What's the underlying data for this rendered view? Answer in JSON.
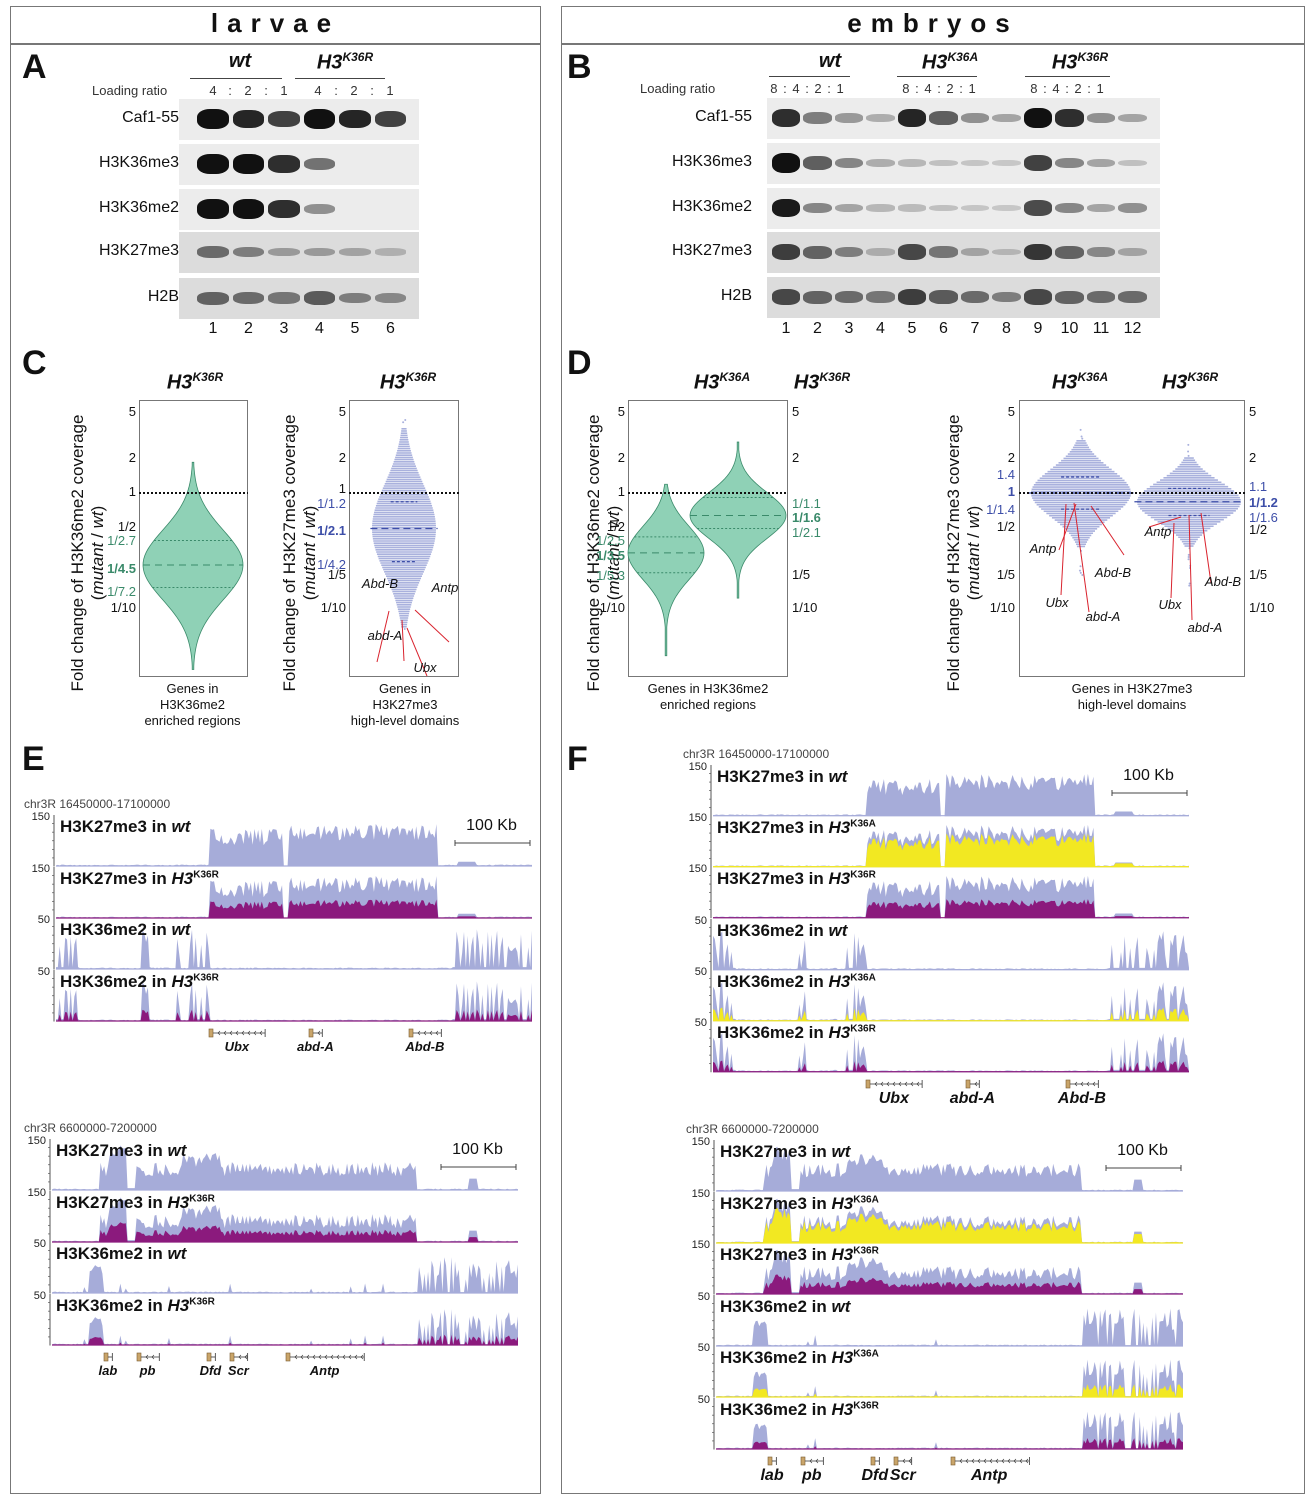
{
  "sections": {
    "left_header": "larvae",
    "right_header": "embryos"
  },
  "panels": {
    "A": {
      "label": "A",
      "groups": [
        {
          "name": "wt",
          "sup": ""
        },
        {
          "name": "H3",
          "sup": "K36R"
        }
      ],
      "loading_ratio_label": "Loading ratio",
      "ratios": [
        "4",
        ":",
        "2",
        ":",
        "1",
        "4",
        ":",
        "2",
        ":",
        "1"
      ],
      "rows": [
        "Caf1-55",
        "H3K36me3",
        "H3K36me2",
        "H3K27me3",
        "H2B"
      ],
      "lanes": [
        "1",
        "2",
        "3",
        "4",
        "5",
        "6"
      ],
      "band_intensity": {
        "Caf1-55": [
          1.0,
          0.85,
          0.7,
          1.0,
          0.85,
          0.7
        ],
        "H3K36me3": [
          1.0,
          0.95,
          0.8,
          0.45,
          0,
          0
        ],
        "H3K36me2": [
          1.0,
          0.95,
          0.8,
          0.3,
          0,
          0
        ],
        "H3K27me3": [
          0.45,
          0.35,
          0.2,
          0.2,
          0.15,
          0.08
        ],
        "H2B": [
          0.5,
          0.45,
          0.4,
          0.55,
          0.35,
          0.3
        ]
      }
    },
    "B": {
      "label": "B",
      "groups": [
        {
          "name": "wt",
          "sup": ""
        },
        {
          "name": "H3",
          "sup": "K36A"
        },
        {
          "name": "H3",
          "sup": "K36R"
        }
      ],
      "loading_ratio_label": "Loading ratio",
      "ratios": [
        "8 : 4 : 2 : 1",
        "8 : 4 : 2 : 1",
        "8 : 4 : 2 : 1"
      ],
      "rows": [
        "Caf1-55",
        "H3K36me3",
        "H3K36me2",
        "H3K27me3",
        "H2B"
      ],
      "lanes": [
        "1",
        "2",
        "3",
        "4",
        "5",
        "6",
        "7",
        "8",
        "9",
        "10",
        "11",
        "12"
      ],
      "band_intensity": {
        "Caf1-55": [
          0.8,
          0.4,
          0.25,
          0.15,
          0.85,
          0.55,
          0.3,
          0.2,
          1.0,
          0.8,
          0.3,
          0.2
        ],
        "H3K36me3": [
          0.95,
          0.55,
          0.35,
          0.15,
          0.1,
          0.05,
          0.03,
          0.02,
          0.7,
          0.35,
          0.2,
          0.05
        ],
        "H3K36me2": [
          0.9,
          0.35,
          0.2,
          0.1,
          0.08,
          0.05,
          0.03,
          0.02,
          0.65,
          0.35,
          0.2,
          0.3
        ],
        "H3K27me3": [
          0.7,
          0.5,
          0.35,
          0.1,
          0.65,
          0.4,
          0.15,
          0.05,
          0.75,
          0.5,
          0.3,
          0.15
        ],
        "H2B": [
          0.65,
          0.5,
          0.45,
          0.4,
          0.7,
          0.55,
          0.45,
          0.35,
          0.65,
          0.5,
          0.45,
          0.45
        ]
      }
    },
    "C": {
      "label": "C",
      "left": {
        "title": "H3",
        "title_sup": "K36R",
        "ylabel": "Fold change of H3K36me2 coverage",
        "ylabel2_pre": "(",
        "ylabel2_it1": "mutant",
        "ylabel2_mid": " / ",
        "ylabel2_it2": "wt",
        "ylabel2_post": ")",
        "xcaption": [
          "Genes in",
          "H3K36me2",
          "enriched regions"
        ],
        "ticks": [
          "5",
          "2",
          "1",
          "1/2",
          "1/10"
        ],
        "stat_labels": [
          {
            "text": "1/2.7",
            "bold": false
          },
          {
            "text": "1/4.5",
            "bold": true
          },
          {
            "text": "1/7.2",
            "bold": false
          }
        ]
      },
      "right": {
        "title": "H3",
        "title_sup": "K36R",
        "ylabel": "Fold change of H3K27me3 coverage",
        "ylabel2_pre": "(",
        "ylabel2_it1": "mutant",
        "ylabel2_mid": " / ",
        "ylabel2_it2": "wt",
        "ylabel2_post": ")",
        "xcaption": [
          "Genes in",
          "H3K27me3",
          "high-level domains"
        ],
        "ticks": [
          "5",
          "2",
          "1",
          "1/5",
          "1/10"
        ],
        "stat_labels": [
          {
            "text": "1/1.2",
            "bold": false
          },
          {
            "text": "1/2.1",
            "bold": true
          },
          {
            "text": "1/4.2",
            "bold": false
          }
        ],
        "genes": [
          "Abd-B",
          "Antp",
          "abd-A",
          "Ubx"
        ]
      }
    },
    "D": {
      "label": "D",
      "left": {
        "titles": [
          {
            "t": "H3",
            "s": "K36A"
          },
          {
            "t": "H3",
            "s": "K36R"
          }
        ],
        "ylabel": "Fold change of H3K36me2 coverage",
        "xcaption": [
          "Genes in H3K36me2",
          "enriched regions"
        ],
        "ticks_left": [
          "5",
          "2",
          "1",
          "1/2",
          "1/10"
        ],
        "ticks_right": [
          "5",
          "2",
          "1/5",
          "1/10"
        ],
        "stats_left": [
          {
            "text": "1/2.5",
            "bold": false
          },
          {
            "text": "1/3.5",
            "bold": true
          },
          {
            "text": "1/5.3",
            "bold": false
          }
        ],
        "stats_right": [
          {
            "text": "1/1.1",
            "bold": false
          },
          {
            "text": "1/1.6",
            "bold": true
          },
          {
            "text": "1/2.1",
            "bold": false
          }
        ]
      },
      "right": {
        "titles": [
          {
            "t": "H3",
            "s": "K36A"
          },
          {
            "t": "H3",
            "s": "K36R"
          }
        ],
        "ylabel": "Fold change of H3K27me3 coverage",
        "xcaption": [
          "Genes in H3K27me3",
          "high-level domains"
        ],
        "ticks_left": [
          "5",
          "2",
          "1/2",
          "1/5",
          "1/10"
        ],
        "ticks_right": [
          "5",
          "2",
          "1/2",
          "1/5",
          "1/10"
        ],
        "stats_left": [
          {
            "text": "1.4",
            "bold": false
          },
          {
            "text": "1",
            "bold": true
          },
          {
            "text": "1/1.4",
            "bold": false
          }
        ],
        "stats_right": [
          {
            "text": "1.1",
            "bold": false
          },
          {
            "text": "1/1.2",
            "bold": true
          },
          {
            "text": "1/1.6",
            "bold": false
          }
        ],
        "genes_a": [
          "Antp",
          "Ubx",
          "abd-A",
          "Abd-B"
        ],
        "genes_r": [
          "Antp",
          "Ubx",
          "abd-A",
          "Abd-B"
        ]
      }
    },
    "E": {
      "label": "E",
      "blocks": [
        {
          "region": "chr3R 16450000-17100000",
          "scale_bar": "100 Kb",
          "tracks": [
            {
              "name": "H3K27me3 in ",
              "geno": "wt",
              "sup": "",
              "scale": "150",
              "overlay": ""
            },
            {
              "name": "H3K27me3 in ",
              "geno": "H3",
              "sup": "K36R",
              "scale": "150",
              "overlay": "purple"
            },
            {
              "name": "H3K36me2 in ",
              "geno": "wt",
              "sup": "",
              "scale": "50",
              "overlay": ""
            },
            {
              "name": "H3K36me2 in ",
              "geno": "H3",
              "sup": "K36R",
              "scale": "50",
              "overlay": "purple"
            }
          ],
          "genes": [
            "Ubx",
            "abd-A",
            "Abd-B"
          ]
        },
        {
          "region": "chr3R 6600000-7200000",
          "scale_bar": "100 Kb",
          "tracks": [
            {
              "name": "H3K27me3 in ",
              "geno": "wt",
              "sup": "",
              "scale": "150",
              "overlay": ""
            },
            {
              "name": "H3K27me3 in ",
              "geno": "H3",
              "sup": "K36R",
              "scale": "150",
              "overlay": "purple"
            },
            {
              "name": "H3K36me2 in ",
              "geno": "wt",
              "sup": "",
              "scale": "50",
              "overlay": ""
            },
            {
              "name": "H3K36me2 in ",
              "geno": "H3",
              "sup": "K36R",
              "scale": "50",
              "overlay": "purple"
            }
          ],
          "genes": [
            "lab",
            "pb",
            "Dfd",
            "Scr",
            "Antp"
          ]
        }
      ]
    },
    "F": {
      "label": "F",
      "blocks": [
        {
          "region": "chr3R 16450000-17100000",
          "scale_bar": "100 Kb",
          "tracks": [
            {
              "name": "H3K27me3 in ",
              "geno": "wt",
              "sup": "",
              "scale": "150",
              "overlay": ""
            },
            {
              "name": "H3K27me3 in ",
              "geno": "H3",
              "sup": "K36A",
              "scale": "150",
              "overlay": "yellow"
            },
            {
              "name": "H3K27me3 in ",
              "geno": "H3",
              "sup": "K36R",
              "scale": "150",
              "overlay": "purple"
            },
            {
              "name": "H3K36me2 in ",
              "geno": "wt",
              "sup": "",
              "scale": "50",
              "overlay": ""
            },
            {
              "name": "H3K36me2 in ",
              "geno": "H3",
              "sup": "K36A",
              "scale": "50",
              "overlay": "yellow"
            },
            {
              "name": "H3K36me2 in ",
              "geno": "H3",
              "sup": "K36R",
              "scale": "50",
              "overlay": "purple"
            }
          ],
          "genes": [
            "Ubx",
            "abd-A",
            "Abd-B"
          ]
        },
        {
          "region": "chr3R 6600000-7200000",
          "scale_bar": "100 Kb",
          "tracks": [
            {
              "name": "H3K27me3 in ",
              "geno": "wt",
              "sup": "",
              "scale": "150",
              "overlay": ""
            },
            {
              "name": "H3K27me3 in ",
              "geno": "H3",
              "sup": "K36A",
              "scale": "150",
              "overlay": "yellow"
            },
            {
              "name": "H3K27me3 in ",
              "geno": "H3",
              "sup": "K36R",
              "scale": "150",
              "overlay": "purple"
            },
            {
              "name": "H3K36me2 in ",
              "geno": "wt",
              "sup": "",
              "scale": "50",
              "overlay": ""
            },
            {
              "name": "H3K36me2 in ",
              "geno": "H3",
              "sup": "K36A",
              "scale": "50",
              "overlay": "yellow"
            },
            {
              "name": "H3K36me2 in ",
              "geno": "H3",
              "sup": "K36R",
              "scale": "50",
              "overlay": "purple"
            }
          ],
          "genes": [
            "lab",
            "pb",
            "Dfd",
            "Scr",
            "Antp"
          ]
        }
      ]
    }
  },
  "colors": {
    "violin_fill": "#8fd1b6",
    "violin_stroke": "#3a8a6a",
    "stat_green": "#3a8a6a",
    "beeswarm": "#a9b1dd",
    "stat_blue": "#3d4ea8",
    "track_wt": "#a6acd9",
    "overlay_purple": "#8b1a7d",
    "overlay_yellow": "#f2e822",
    "gene_box": "#c9a56a",
    "annotation_red": "#d9232e"
  }
}
